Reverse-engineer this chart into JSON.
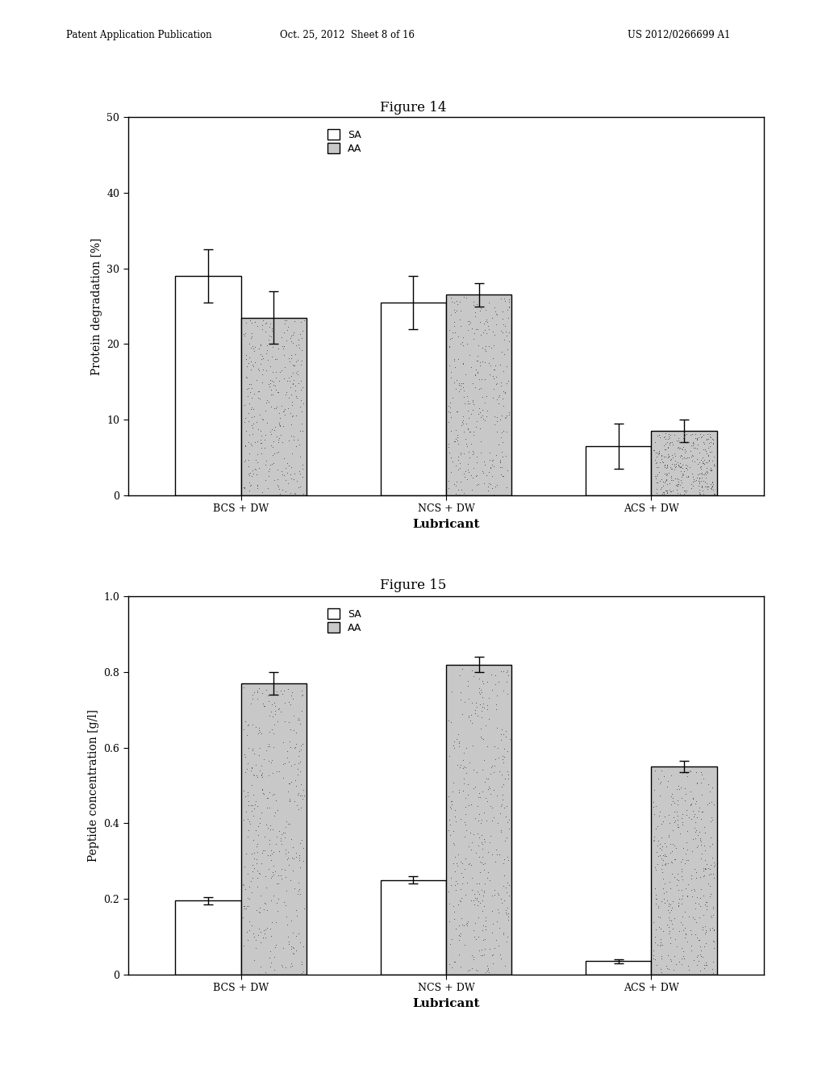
{
  "fig14": {
    "title": "Figure 14",
    "categories": [
      "BCS + DW",
      "NCS + DW",
      "ACS + DW"
    ],
    "SA_values": [
      29.0,
      25.5,
      6.5
    ],
    "AA_values": [
      23.5,
      26.5,
      8.5
    ],
    "SA_errors": [
      3.5,
      3.5,
      3.0
    ],
    "AA_errors": [
      3.5,
      1.5,
      1.5
    ],
    "ylabel": "Protein degradation [%]",
    "xlabel": "Lubricant",
    "ylim": [
      0,
      50
    ],
    "yticks": [
      0,
      10,
      20,
      30,
      40,
      50
    ]
  },
  "fig15": {
    "title": "Figure 15",
    "categories": [
      "BCS + DW",
      "NCS + DW",
      "ACS + DW"
    ],
    "SA_values": [
      0.195,
      0.25,
      0.035
    ],
    "AA_values": [
      0.77,
      0.82,
      0.55
    ],
    "SA_errors": [
      0.01,
      0.01,
      0.005
    ],
    "AA_errors": [
      0.03,
      0.02,
      0.015
    ],
    "ylabel": "Peptide concentration [g/l]",
    "xlabel": "Lubricant",
    "ylim": [
      0,
      1.0
    ],
    "yticks": [
      0,
      0.2,
      0.4,
      0.6,
      0.8,
      1.0
    ]
  },
  "bar_width": 0.32,
  "SA_color": "white",
  "AA_color": "#c8c8c8",
  "edge_color": "black",
  "background_color": "white",
  "header_left": "Patent Application Publication",
  "header_mid": "Oct. 25, 2012  Sheet 8 of 16",
  "header_right": "US 2012/0266699 A1",
  "legend_SA": "SA",
  "legend_AA": "AA",
  "title_fontsize": 12,
  "axis_fontsize": 10,
  "tick_fontsize": 9,
  "label_fontsize": 11
}
